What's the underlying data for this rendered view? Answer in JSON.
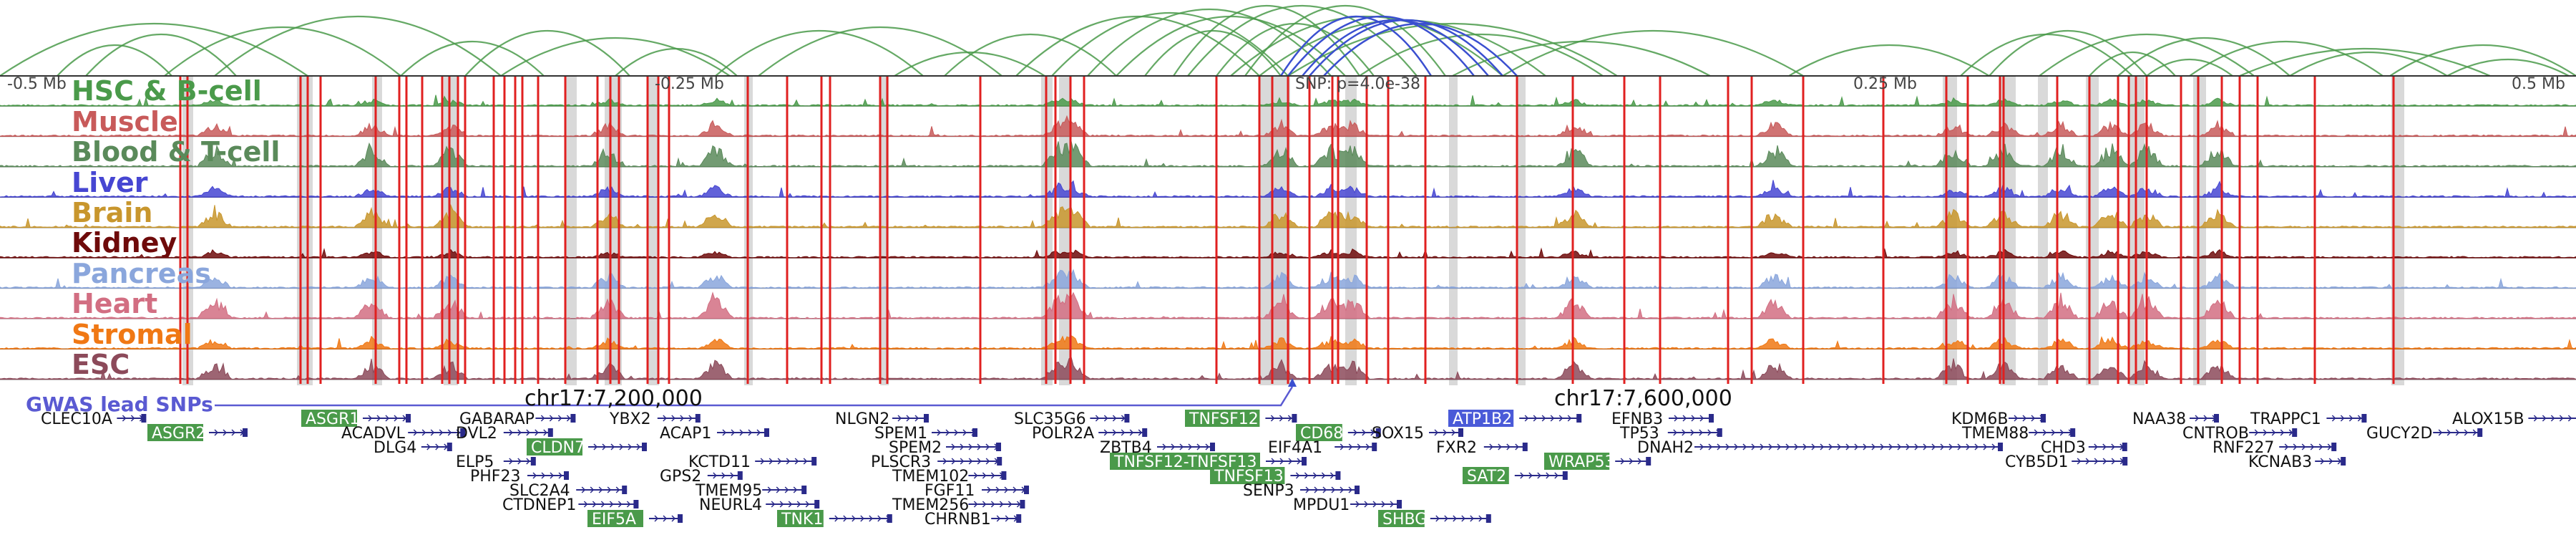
{
  "axis": {
    "ticks": [
      "-0.5 Mb",
      "-0.25 Mb",
      "SNP: p=4.0e-38",
      "0.25 Mb",
      "0.5 Mb"
    ]
  },
  "tracks": [
    {
      "name": "HSC & B-cell",
      "color": "#4a9a4a"
    },
    {
      "name": "Muscle",
      "color": "#c85a5a"
    },
    {
      "name": "Blood & T-cell",
      "color": "#5a8a5a"
    },
    {
      "name": "Liver",
      "color": "#4646d2"
    },
    {
      "name": "Brain",
      "color": "#c8962d"
    },
    {
      "name": "Kidney",
      "color": "#6e0a0a"
    },
    {
      "name": "Pancreas",
      "color": "#8aa6dc"
    },
    {
      "name": "Heart",
      "color": "#d26e82"
    },
    {
      "name": "Stromal",
      "color": "#f07814"
    },
    {
      "name": "ESC",
      "color": "#8c4a5a"
    }
  ],
  "gwas_label": "GWAS lead SNPs",
  "coords": [
    "chr17:7,200,000",
    "chr17:7,600,000"
  ],
  "genes": [
    {
      "label": "CLEC10A",
      "highlight": false
    },
    {
      "label": "ASGR2",
      "highlight": true
    },
    {
      "label": "ASGR1",
      "highlight": true
    },
    {
      "label": "ACADVL",
      "highlight": false
    },
    {
      "label": "DLG4",
      "highlight": false
    },
    {
      "label": "GABARAP",
      "highlight": false
    },
    {
      "label": "DVL2",
      "highlight": false
    },
    {
      "label": "CLDN7",
      "highlight": true
    },
    {
      "label": "ELP5",
      "highlight": false
    },
    {
      "label": "PHF23",
      "highlight": false
    },
    {
      "label": "SLC2A4",
      "highlight": false
    },
    {
      "label": "CTDNEP1",
      "highlight": false
    },
    {
      "label": "EIF5A",
      "highlight": true
    },
    {
      "label": "YBX2",
      "highlight": false
    },
    {
      "label": "ACAP1",
      "highlight": false
    },
    {
      "label": "KCTD11",
      "highlight": false
    },
    {
      "label": "GPS2",
      "highlight": false
    },
    {
      "label": "TMEM95",
      "highlight": false
    },
    {
      "label": "NEURL4",
      "highlight": false
    },
    {
      "label": "TNK1",
      "highlight": true
    },
    {
      "label": "NLGN2",
      "highlight": false
    },
    {
      "label": "SPEM1",
      "highlight": false
    },
    {
      "label": "SPEM2",
      "highlight": false
    },
    {
      "label": "PLSCR3",
      "highlight": false
    },
    {
      "label": "TMEM102",
      "highlight": false
    },
    {
      "label": "FGF11",
      "highlight": false
    },
    {
      "label": "TMEM256",
      "highlight": false
    },
    {
      "label": "CHRNB1",
      "highlight": false
    },
    {
      "label": "SLC35G6",
      "highlight": false
    },
    {
      "label": "POLR2A",
      "highlight": false
    },
    {
      "label": "ZBTB4",
      "highlight": false
    },
    {
      "label": "TNFSF12",
      "highlight": true
    },
    {
      "label": "TNFSF12-TNFSF13",
      "highlight": true
    },
    {
      "label": "TNFSF13",
      "highlight": true
    },
    {
      "label": "SENP3",
      "highlight": false
    },
    {
      "label": "CD68",
      "highlight": true
    },
    {
      "label": "EIF4A1",
      "highlight": false
    },
    {
      "label": "MPDU1",
      "highlight": false
    },
    {
      "label": "SHBG",
      "highlight": true
    },
    {
      "label": "SOX15",
      "highlight": false
    },
    {
      "label": "FXR2",
      "highlight": false
    },
    {
      "label": "SAT2",
      "highlight": true
    },
    {
      "label": "ATP1B2",
      "highlight": true,
      "blue": true
    },
    {
      "label": "WRAP53",
      "highlight": true
    },
    {
      "label": "EFNB3",
      "highlight": false
    },
    {
      "label": "TP53",
      "highlight": false
    },
    {
      "label": "DNAH2",
      "highlight": false
    },
    {
      "label": "KDM6B",
      "highlight": false
    },
    {
      "label": "TMEM88",
      "highlight": false
    },
    {
      "label": "CYB5D1",
      "highlight": false
    },
    {
      "label": "NAA38",
      "highlight": false
    },
    {
      "label": "CHD3",
      "highlight": false
    },
    {
      "label": "CNTROB",
      "highlight": false
    },
    {
      "label": "RNF227",
      "highlight": false
    },
    {
      "label": "KCNAB3",
      "highlight": false
    },
    {
      "label": "TRAPPC1",
      "highlight": false
    },
    {
      "label": "GUCY2D",
      "highlight": false
    },
    {
      "label": "ALOX15B",
      "highlight": false
    }
  ],
  "colors": {
    "arc_green": "#4a9a4a",
    "arc_blue": "#3a4fd0",
    "snp_red": "#e02020",
    "peak_grey": "#d9d9d9",
    "gene_blue": "#2a2a8a",
    "highlight_green": "#4a9a4a"
  }
}
